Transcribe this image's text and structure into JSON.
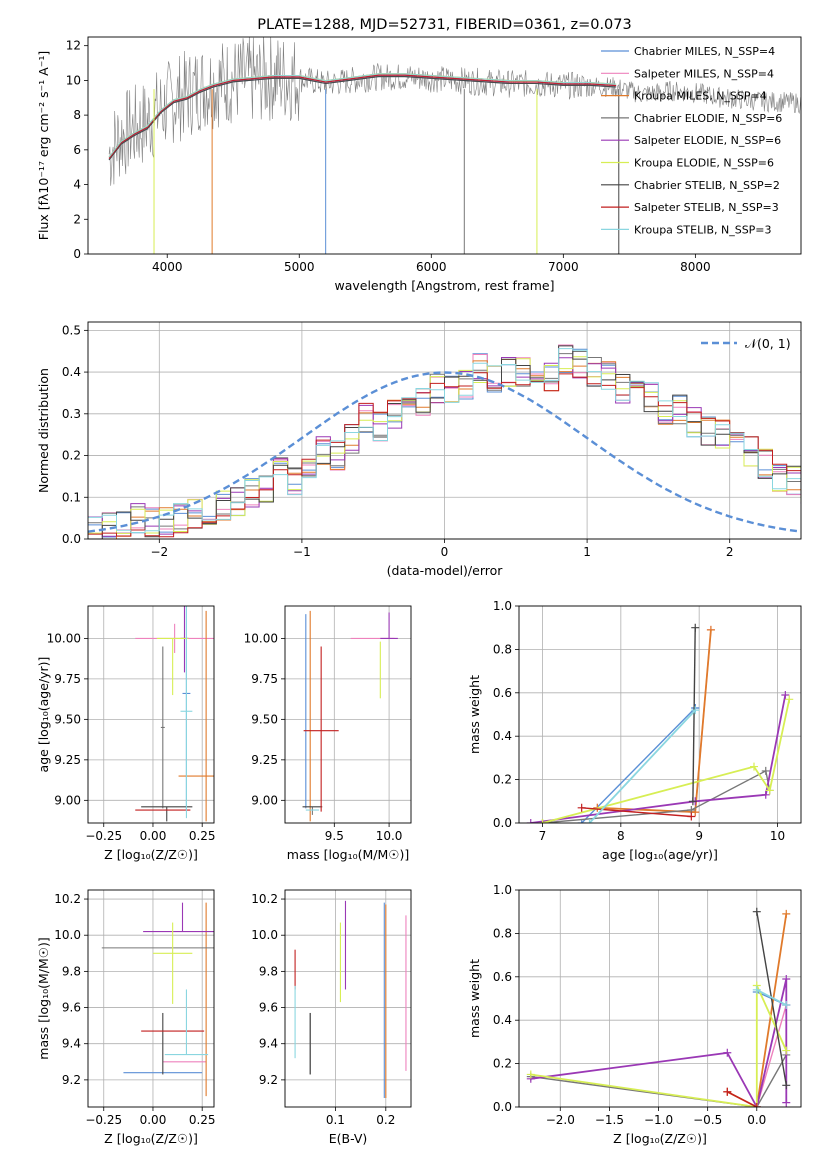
{
  "colors": [
    "#5b8fd6",
    "#ee82bd",
    "#e07a2b",
    "#777777",
    "#9a38b5",
    "#d7ee54",
    "#444444",
    "#c21f1f",
    "#8ad6e0"
  ],
  "chart_data": [
    {
      "id": "spectrum",
      "type": "line",
      "title": "PLATE=1288, MJD=52731, FIBERID=0361, z=0.073",
      "xlabel": "wavelength [Angstrom, rest frame]",
      "ylabel": "Flux [fλ10⁻¹⁷ erg cm⁻² s⁻¹ A⁻¹]",
      "xlim": [
        3400,
        8800
      ],
      "ylim": [
        0,
        12.5
      ],
      "xticks": [
        4000,
        5000,
        6000,
        7000,
        8000
      ],
      "yticks": [
        0,
        2,
        4,
        6,
        8,
        10,
        12
      ],
      "grid": false,
      "legend_position": "top-right",
      "legend": [
        "Chabrier MILES, N_SSP=4",
        "Salpeter MILES, N_SSP=4",
        "Kroupa MILES, N_SSP=4",
        "Chabrier ELODIE, N_SSP=6",
        "Salpeter ELODIE, N_SSP=6",
        "Kroupa ELODIE, N_SSP=6",
        "Chabrier STELIB, N_SSP=2",
        "Salpeter STELIB, N_SSP=3",
        "Kroupa STELIB, N_SSP=3"
      ],
      "observed_flux_x": [
        3560,
        3650,
        3750,
        3850,
        3950,
        4050,
        4150,
        4250,
        4350,
        4500,
        4650,
        4800,
        5000,
        5200,
        5400,
        5600,
        5800,
        6000,
        6200,
        6400,
        6600,
        6800,
        7000,
        7200,
        7400,
        7600,
        7800,
        8000,
        8200,
        8500,
        8800
      ],
      "observed_flux_y": [
        5.8,
        6.8,
        7.2,
        7.6,
        8.3,
        8.9,
        9.2,
        9.6,
        9.8,
        10.0,
        10.0,
        10.2,
        10.1,
        9.8,
        10.0,
        10.2,
        10.2,
        10.1,
        10.0,
        9.9,
        9.8,
        9.8,
        9.7,
        9.7,
        9.6,
        9.2,
        9.4,
        9.3,
        9.0,
        8.8,
        8.7
      ],
      "model_x": [
        3560,
        3650,
        3750,
        3850,
        3950,
        4050,
        4150,
        4250,
        4350,
        4500,
        4650,
        4800,
        5000,
        5200,
        5400,
        5600,
        5800,
        6000,
        6200,
        6400,
        6600,
        6800,
        7000,
        7200,
        7400
      ],
      "model_y": [
        5.5,
        6.4,
        6.9,
        7.3,
        8.2,
        8.8,
        9.0,
        9.4,
        9.7,
        10.0,
        10.1,
        10.2,
        10.2,
        9.9,
        10.1,
        10.3,
        10.3,
        10.2,
        10.1,
        10.0,
        9.9,
        9.9,
        9.8,
        9.8,
        9.7
      ]
    },
    {
      "id": "residuals",
      "type": "line",
      "xlabel": "(data-model)/error",
      "ylabel": "Normed distribution",
      "xlim": [
        -2.5,
        2.5
      ],
      "ylim": [
        0,
        0.52
      ],
      "xticks": [
        -2,
        -1,
        0,
        1,
        2
      ],
      "yticks": [
        0.0,
        0.1,
        0.2,
        0.3,
        0.4,
        0.5
      ],
      "grid": true,
      "legend_position": "top-right",
      "normal_curve_label": "𝒩(0, 1)",
      "bin_width": 0.1,
      "bin_edges_start": -2.5,
      "hist_values": [
        [
          0.02,
          0.03,
          0.03,
          0.05,
          0.04,
          0.04,
          0.05,
          0.06,
          0.07,
          0.08,
          0.09,
          0.11,
          0.12,
          0.16,
          0.14,
          0.17,
          0.21,
          0.2,
          0.24,
          0.29,
          0.27,
          0.3,
          0.31,
          0.33,
          0.36,
          0.36,
          0.37,
          0.41,
          0.38,
          0.4,
          0.4,
          0.41,
          0.39,
          0.43,
          0.42,
          0.4,
          0.39,
          0.36,
          0.37,
          0.34,
          0.31,
          0.31,
          0.28,
          0.26,
          0.25,
          0.22,
          0.21,
          0.18,
          0.15,
          0.14,
          0.12,
          0.11,
          0.08,
          0.08,
          0.06,
          0.05,
          0.04,
          0.04,
          0.03,
          0.02
        ]
      ]
    },
    {
      "id": "age-vs-z",
      "type": "scatter",
      "xlabel": "Z [log₁₀(Z/Z☉)]",
      "ylabel": "age  [log₁₀(age/yr)]",
      "xlim": [
        -0.33,
        0.31
      ],
      "ylim": [
        8.86,
        10.2
      ],
      "xticks": [
        -0.25,
        0.0,
        0.25
      ],
      "xtick_labels": [
        "−0.25",
        "0.00",
        "0.25"
      ],
      "yticks": [
        9.0,
        9.25,
        9.5,
        9.75,
        10.0
      ],
      "ytick_labels": [
        "9.00",
        "9.25",
        "9.50",
        "9.75",
        "10.00"
      ],
      "grid": true,
      "points": [
        {
          "x": 0.17,
          "y": 9.66,
          "xerr": 0.02,
          "yerr": [
            0.72,
            0.72
          ]
        },
        {
          "x": 0.11,
          "y": 10.0,
          "xerr": 0.2,
          "yerr": [
            0.09,
            0.09
          ]
        },
        {
          "x": 0.27,
          "y": 9.15,
          "xerr": 0.14,
          "yerr": [
            0.28,
            1.02
          ]
        },
        {
          "x": 0.05,
          "y": 9.45,
          "xerr": 0.01,
          "yerr": [
            0.5,
            0.5
          ]
        },
        {
          "x": 0.16,
          "y": 10.0,
          "xerr": 0.02,
          "yerr": [
            0.21,
            0.21
          ]
        },
        {
          "x": 0.1,
          "y": 10.0,
          "xerr": 0.08,
          "yerr": [
            0.35,
            0.0
          ]
        },
        {
          "x": 0.07,
          "y": 8.96,
          "xerr": 0.13,
          "yerr": [
            0.09,
            0.0
          ]
        },
        {
          "x": 0.05,
          "y": 8.94,
          "xerr": 0.14,
          "yerr": [
            0.0,
            0.0
          ]
        },
        {
          "x": 0.17,
          "y": 9.55,
          "xerr": 0.03,
          "yerr": [
            0.66,
            0.66
          ]
        }
      ]
    },
    {
      "id": "age-vs-mass",
      "type": "scatter",
      "xlabel": "mass [log₁₀(M/M☉)]",
      "ylabel": "",
      "xlim": [
        9.05,
        10.2
      ],
      "ylim": [
        8.86,
        10.2
      ],
      "xticks": [
        9.5,
        10.0
      ],
      "xtick_labels": [
        "9.5",
        "10.0"
      ],
      "yticks": [
        9.0,
        9.25,
        9.5,
        9.75,
        10.0
      ],
      "ytick_labels": [
        "9.00",
        "9.25",
        "9.50",
        "9.75",
        "10.00"
      ],
      "grid": true,
      "points": [
        {
          "x": 9.24,
          "y": 9.55,
          "xerr": 0.0,
          "yerr": [
            0.6,
            0.6
          ]
        },
        {
          "x": 9.85,
          "y": 10.0,
          "xerr": 0.2,
          "yerr": [
            0.0,
            0.0
          ]
        },
        {
          "x": 9.28,
          "y": 9.15,
          "xerr": 0.0,
          "yerr": [
            0.28,
            1.02
          ]
        },
        {
          "x": 9.3,
          "y": 8.96,
          "xerr": 0.0,
          "yerr": [
            0.05,
            0.0
          ]
        },
        {
          "x": 10.0,
          "y": 10.0,
          "xerr": 0.08,
          "yerr": [
            0.0,
            0.16
          ]
        },
        {
          "x": 9.92,
          "y": 9.8,
          "xerr": 0.0,
          "yerr": [
            0.17,
            0.18
          ]
        },
        {
          "x": 9.3,
          "y": 8.96,
          "xerr": 0.09,
          "yerr": [
            0.0,
            0.0
          ]
        },
        {
          "x": 9.38,
          "y": 9.43,
          "xerr": 0.16,
          "yerr": [
            0.5,
            0.52
          ]
        },
        {
          "x": 9.3,
          "y": 8.94,
          "xerr": 0.06,
          "yerr": [
            0.0,
            0.0
          ]
        }
      ]
    },
    {
      "id": "weight-vs-age",
      "type": "line",
      "xlabel": "age  [log₁₀(age/yr)]",
      "ylabel": "mass weight",
      "xlim": [
        6.7,
        10.3
      ],
      "ylim": [
        0,
        1.0
      ],
      "xticks": [
        7,
        8,
        9,
        10
      ],
      "yticks": [
        0.0,
        0.2,
        0.4,
        0.6,
        0.8,
        1.0
      ],
      "grid": true,
      "series": [
        {
          "x": [
            7.5,
            8.95,
            8.95
          ],
          "y": [
            0.0,
            0.53,
            0.53
          ]
        },
        {
          "x": [
            7.7,
            8.95,
            9.15
          ],
          "y": [
            0.07,
            0.05,
            0.89
          ]
        },
        {
          "x": [
            7.7,
            8.95,
            9.15
          ],
          "y": [
            0.07,
            0.05,
            0.89
          ]
        },
        {
          "x": [
            7.0,
            8.9,
            9.85,
            9.9
          ],
          "y": [
            0.0,
            0.06,
            0.24,
            0.15
          ]
        },
        {
          "x": [
            6.85,
            8.95,
            9.85,
            10.1
          ],
          "y": [
            0.0,
            0.1,
            0.13,
            0.59
          ]
        },
        {
          "x": [
            7.0,
            9.7,
            9.9,
            10.15
          ],
          "y": [
            0.0,
            0.26,
            0.15,
            0.57
          ]
        },
        {
          "x": [
            8.92,
            8.95
          ],
          "y": [
            0.1,
            0.9
          ]
        },
        {
          "x": [
            7.5,
            8.9
          ],
          "y": [
            0.07,
            0.03
          ]
        },
        {
          "x": [
            7.6,
            8.95
          ],
          "y": [
            0.0,
            0.52
          ]
        }
      ]
    },
    {
      "id": "mass-vs-z",
      "type": "scatter",
      "xlabel": "Z [log₁₀(Z/Z☉)]",
      "ylabel": "mass [log₁₀(M/M☉)]",
      "xlim": [
        -0.33,
        0.31
      ],
      "ylim": [
        9.05,
        10.25
      ],
      "xticks": [
        -0.25,
        0.0,
        0.25
      ],
      "xtick_labels": [
        "−0.25",
        "0.00",
        "0.25"
      ],
      "yticks": [
        9.2,
        9.4,
        9.6,
        9.8,
        10.0,
        10.2
      ],
      "ytick_labels": [
        "9.2",
        "9.4",
        "9.6",
        "9.8",
        "10.0",
        "10.2"
      ],
      "grid": true,
      "points": [
        {
          "x": 0.05,
          "y": 9.24,
          "xerr": 0.2,
          "yerr": [
            0.0,
            0.0
          ]
        },
        {
          "x": 0.16,
          "y": 9.3,
          "xerr": 0.11,
          "yerr": [
            0.0,
            0.0
          ]
        },
        {
          "x": 0.27,
          "y": 9.28,
          "xerr": 0.0,
          "yerr": [
            0.17,
            0.9
          ]
        },
        {
          "x": 0.04,
          "y": 9.93,
          "xerr": 0.3,
          "yerr": [
            0.0,
            0.0
          ]
        },
        {
          "x": 0.15,
          "y": 10.02,
          "xerr": 0.2,
          "yerr": [
            0.0,
            0.16
          ]
        },
        {
          "x": 0.1,
          "y": 9.9,
          "xerr": 0.1,
          "yerr": [
            0.28,
            0.17
          ]
        },
        {
          "x": 0.05,
          "y": 9.3,
          "xerr": 0.0,
          "yerr": [
            0.07,
            0.27
          ]
        },
        {
          "x": 0.1,
          "y": 9.47,
          "xerr": 0.16,
          "yerr": [
            0.0,
            0.0
          ]
        },
        {
          "x": 0.17,
          "y": 9.34,
          "xerr": 0.11,
          "yerr": [
            0.0,
            0.36
          ]
        }
      ]
    },
    {
      "id": "mass-vs-ebv",
      "type": "scatter",
      "xlabel": "E(B-V)",
      "ylabel": "",
      "xlim": [
        0.0,
        0.25
      ],
      "ylim": [
        9.05,
        10.25
      ],
      "xticks": [
        0.1,
        0.2
      ],
      "xtick_labels": [
        "0.1",
        "0.2"
      ],
      "yticks": [
        9.2,
        9.4,
        9.6,
        9.8,
        10.0,
        10.2
      ],
      "ytick_labels": [
        "9.2",
        "9.4",
        "9.6",
        "9.8",
        "10.0",
        "10.2"
      ],
      "grid": true,
      "points": [
        {
          "x": 0.197,
          "y": 9.7,
          "xerr": 0.0,
          "yerr": [
            0.6,
            0.48
          ]
        },
        {
          "x": 0.24,
          "y": 9.67,
          "xerr": 0.0,
          "yerr": [
            0.42,
            0.44
          ]
        },
        {
          "x": 0.2,
          "y": 9.6,
          "xerr": 0.0,
          "yerr": [
            0.5,
            0.57
          ]
        },
        {
          "x": 0.05,
          "y": 9.4,
          "xerr": 0.0,
          "yerr": [
            0.17,
            0.17
          ]
        },
        {
          "x": 0.12,
          "y": 9.92,
          "xerr": 0.0,
          "yerr": [
            0.22,
            0.27
          ]
        },
        {
          "x": 0.11,
          "y": 9.85,
          "xerr": 0.0,
          "yerr": [
            0.22,
            0.22
          ]
        },
        {
          "x": 0.05,
          "y": 9.4,
          "xerr": 0.0,
          "yerr": [
            0.17,
            0.17
          ]
        },
        {
          "x": 0.02,
          "y": 9.8,
          "xerr": 0.0,
          "yerr": [
            0.1,
            0.12
          ]
        },
        {
          "x": 0.02,
          "y": 9.52,
          "xerr": 0.0,
          "yerr": [
            0.2,
            0.2
          ]
        }
      ]
    },
    {
      "id": "weight-vs-z",
      "type": "line",
      "xlabel": "Z [log₁₀(Z/Z☉)]",
      "ylabel": "mass weight",
      "xlim": [
        -2.42,
        0.45
      ],
      "ylim": [
        0,
        1.0
      ],
      "xticks": [
        -2.0,
        -1.5,
        -1.0,
        -0.5,
        0.0
      ],
      "xtick_labels": [
        "−2.0",
        "−1.5",
        "−1.0",
        "−0.5",
        "0.0"
      ],
      "yticks": [
        0.0,
        0.2,
        0.4,
        0.6,
        0.8,
        1.0
      ],
      "grid": true,
      "series": [
        {
          "x": [
            0.0,
            0.0,
            0.3
          ],
          "y": [
            0.0,
            0.53,
            0.47
          ]
        },
        {
          "x": [
            -0.3,
            0.0,
            0.3
          ],
          "y": [
            0.07,
            0.0,
            0.47
          ]
        },
        {
          "x": [
            -0.3,
            0.0,
            0.3
          ],
          "y": [
            0.07,
            0.0,
            0.89
          ]
        },
        {
          "x": [
            -2.3,
            0.0,
            0.3
          ],
          "y": [
            0.14,
            0.0,
            0.24
          ]
        },
        {
          "x": [
            -2.3,
            -0.3,
            0.0,
            0.3,
            0.3
          ],
          "y": [
            0.13,
            0.25,
            0.0,
            0.59,
            0.02
          ]
        },
        {
          "x": [
            -2.3,
            0.0,
            0.0,
            0.3
          ],
          "y": [
            0.15,
            0.0,
            0.56,
            0.26
          ]
        },
        {
          "x": [
            0.0,
            0.3
          ],
          "y": [
            0.9,
            0.1
          ]
        },
        {
          "x": [
            -0.3,
            0.0
          ],
          "y": [
            0.07,
            0.0
          ]
        },
        {
          "x": [
            0.0,
            0.3
          ],
          "y": [
            0.54,
            0.47
          ]
        }
      ]
    }
  ]
}
